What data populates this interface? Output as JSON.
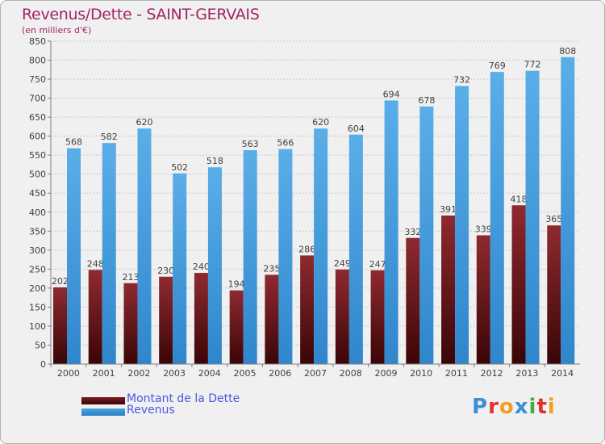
{
  "chart_data": {
    "type": "bar",
    "title": "Revenus/Dette - SAINT-GERVAIS",
    "subtitle": "(en milliers d'€)",
    "categories": [
      "2000",
      "2001",
      "2002",
      "2003",
      "2004",
      "2005",
      "2006",
      "2007",
      "2008",
      "2009",
      "2010",
      "2011",
      "2012",
      "2013",
      "2014"
    ],
    "series": [
      {
        "name": "Montant de la Dette",
        "color": "#7a1c22",
        "values": [
          202,
          248,
          213,
          230,
          240,
          194,
          235,
          286,
          249,
          247,
          332,
          391,
          339,
          418,
          365
        ],
        "labels": [
          "202",
          "248",
          "213",
          "230",
          "240",
          "194",
          "235",
          "286",
          "249",
          "247",
          "332",
          "391",
          "339",
          "418",
          "365"
        ]
      },
      {
        "name": "Revenus",
        "color": "#4aa3e2",
        "values": [
          568,
          582,
          620,
          502,
          518,
          563,
          566,
          620,
          604,
          694,
          678,
          732,
          769,
          772,
          808
        ],
        "labels": [
          "568",
          "582",
          "620",
          "502",
          "518",
          "563",
          "566",
          "620",
          "604",
          "694",
          "678",
          "732",
          "769",
          "772",
          "808"
        ]
      }
    ],
    "ylim": [
      0,
      850
    ],
    "yticks": [
      "0",
      "50",
      "100",
      "150",
      "200",
      "250",
      "300",
      "350",
      "400",
      "450",
      "500",
      "550",
      "600",
      "650",
      "700",
      "750",
      "800",
      "850"
    ],
    "ytick_values": [
      0,
      50,
      100,
      150,
      200,
      250,
      300,
      350,
      400,
      450,
      500,
      550,
      600,
      650,
      700,
      750,
      800,
      850
    ],
    "grid": true,
    "legend_position": "bottom-left"
  },
  "legend": {
    "items": [
      {
        "label": "Montant de la Dette",
        "color": "#7a1c22"
      },
      {
        "label": "Revenus",
        "color": "#4aa3e2"
      }
    ]
  },
  "logo": {
    "letters": [
      "P",
      "r",
      "o",
      "x",
      "i",
      "t",
      "i"
    ],
    "colors": [
      "#3a8fd6",
      "#e0302a",
      "#f0a020",
      "#3a8fd6",
      "#40b040",
      "#e0302a",
      "#f0a020"
    ]
  }
}
